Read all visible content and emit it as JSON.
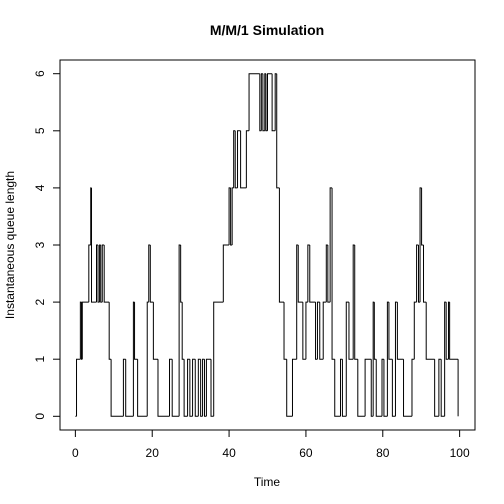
{
  "chart_data": {
    "type": "step",
    "title": "M/M/1 Simulation",
    "x_label": "Time",
    "y_label": "Instantaneous queue length",
    "x": [
      0,
      0.3,
      1.3,
      1.6,
      1.8,
      3.5,
      4,
      4.2,
      5.5,
      5.9,
      6.3,
      6.6,
      7,
      7.5,
      8.8,
      9.3,
      12.5,
      13.1,
      15.1,
      15.4,
      16.2,
      18.7,
      19.1,
      19.5,
      20.3,
      21.5,
      24.5,
      25.2,
      27,
      27.4,
      27.8,
      28.3,
      29.2,
      29.8,
      30.5,
      31.2,
      32,
      32.6,
      33.1,
      33.6,
      34.1,
      35.3,
      36,
      38.5,
      40,
      40.4,
      40.8,
      41.2,
      41.6,
      42.2,
      43,
      44.5,
      45.2,
      48,
      48.4,
      48.8,
      49.3,
      49.6,
      50,
      51.2,
      52,
      52.4,
      53.1,
      54.3,
      55,
      56.5,
      57.6,
      58,
      59.2,
      60,
      60.5,
      61,
      62.5,
      63,
      63.6,
      64.5,
      65.3,
      65.7,
      66.3,
      66.8,
      67.5,
      69,
      69.5,
      70.5,
      71.2,
      72.3,
      72.7,
      73.5,
      75.4,
      77,
      77.5,
      77.8,
      78.3,
      79.8,
      80.3,
      81.2,
      81.6,
      82.5,
      83.3,
      83.8,
      85.4,
      87.6,
      88.2,
      88.8,
      89.3,
      89.7,
      90.1,
      90.6,
      91.3,
      93.5,
      94.6,
      95.2,
      96.1,
      96.5,
      97.1,
      97.4,
      99.6
    ],
    "values": [
      0,
      1,
      2,
      1,
      2,
      3,
      4,
      2,
      3,
      2,
      3,
      2,
      3,
      2,
      1,
      0,
      1,
      0,
      2,
      1,
      0,
      2,
      3,
      2,
      1,
      0,
      1,
      0,
      3,
      2,
      1,
      0,
      1,
      0,
      1,
      0,
      1,
      0,
      1,
      0,
      1,
      0,
      2,
      3,
      4,
      3,
      4,
      5,
      4,
      5,
      4,
      5,
      6,
      5,
      6,
      5,
      6,
      5,
      6,
      5,
      6,
      4,
      2,
      1,
      0,
      1,
      3,
      2,
      1,
      2,
      3,
      2,
      1,
      2,
      1,
      2,
      3,
      2,
      4,
      1,
      0,
      1,
      0,
      2,
      1,
      3,
      1,
      0,
      1,
      0,
      2,
      1,
      0,
      1,
      0,
      2,
      1,
      0,
      2,
      1,
      0,
      1,
      2,
      3,
      2,
      4,
      3,
      2,
      1,
      0,
      1,
      0,
      2,
      1,
      2,
      1,
      0
    ],
    "color": "#000000",
    "xlim": [
      -4,
      104
    ],
    "xticks": [
      0,
      20,
      40,
      60,
      80,
      100
    ],
    "ylim": [
      -0.24,
      6.24
    ],
    "yticks": [
      0,
      1,
      2,
      3,
      4,
      5,
      6
    ]
  }
}
